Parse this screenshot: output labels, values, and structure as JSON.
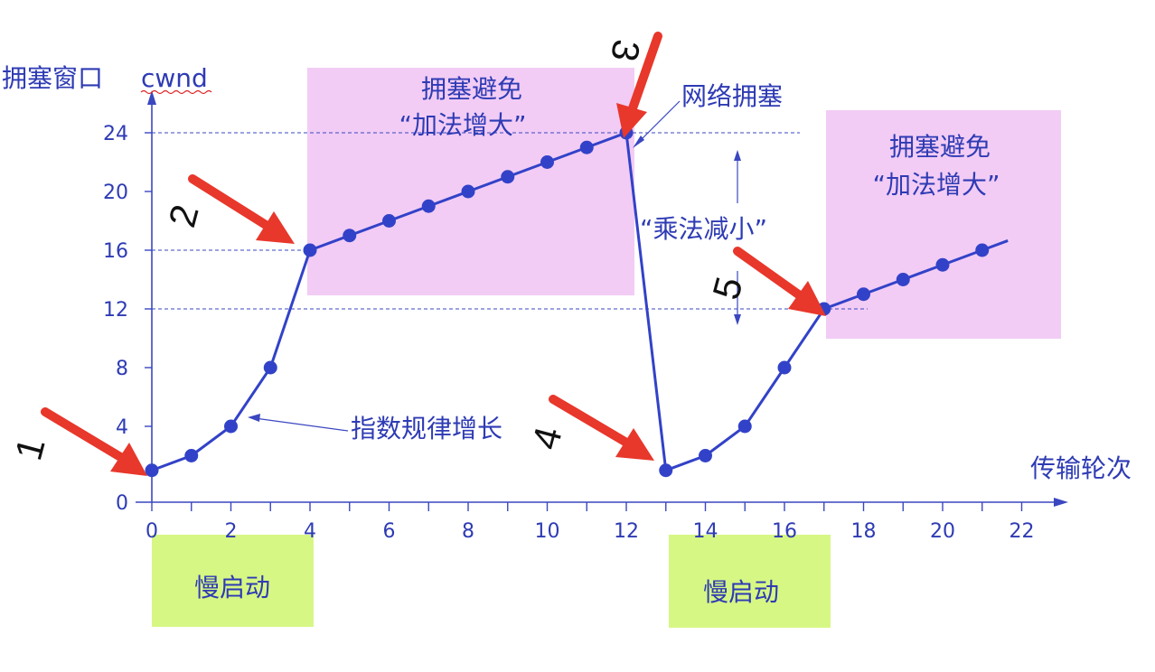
{
  "chart_data": {
    "type": "line",
    "ylabel": "拥塞窗口",
    "ylabel_var": "cwnd",
    "xlabel": "传输轮次",
    "x_ticks": [
      0,
      2,
      4,
      6,
      8,
      10,
      12,
      14,
      16,
      18,
      20,
      22
    ],
    "y_ticks": [
      0,
      4,
      8,
      12,
      16,
      20,
      24
    ],
    "x_range": [
      0,
      22
    ],
    "y_range": [
      0,
      24
    ],
    "series": [
      {
        "values": [
          [
            0,
            1
          ],
          [
            1,
            2
          ],
          [
            2,
            4
          ],
          [
            3,
            8
          ],
          [
            4,
            16
          ],
          [
            5,
            17
          ],
          [
            6,
            18
          ],
          [
            7,
            19
          ],
          [
            8,
            20
          ],
          [
            9,
            21
          ],
          [
            10,
            22
          ],
          [
            11,
            23
          ],
          [
            12,
            24
          ],
          [
            13,
            1
          ],
          [
            14,
            2
          ],
          [
            15,
            4
          ],
          [
            16,
            8
          ],
          [
            17,
            12
          ],
          [
            18,
            13
          ],
          [
            19,
            14
          ],
          [
            20,
            15
          ],
          [
            21,
            16
          ]
        ]
      }
    ],
    "reference_lines": {
      "y": [
        24,
        16,
        12
      ]
    },
    "annotations": {
      "ca1_line1": "拥塞避免",
      "ca1_line2": "“加法增大”",
      "ca2_line1": "拥塞避免",
      "ca2_line2": "“加法增大”",
      "congestion": "网络拥塞",
      "exponential": "指数规律增长",
      "multiplicative": "“乘法减小”",
      "slow_start_1": "慢启动",
      "slow_start_2": "慢启动"
    },
    "markers": [
      "1",
      "2",
      "3",
      "4",
      "5"
    ]
  },
  "colors": {
    "series": "#3242c8",
    "axis": "#2e3bb4",
    "ca_band": "#f2ccf5",
    "slow_start": "#d7f784",
    "arrow": "#e8372b"
  }
}
